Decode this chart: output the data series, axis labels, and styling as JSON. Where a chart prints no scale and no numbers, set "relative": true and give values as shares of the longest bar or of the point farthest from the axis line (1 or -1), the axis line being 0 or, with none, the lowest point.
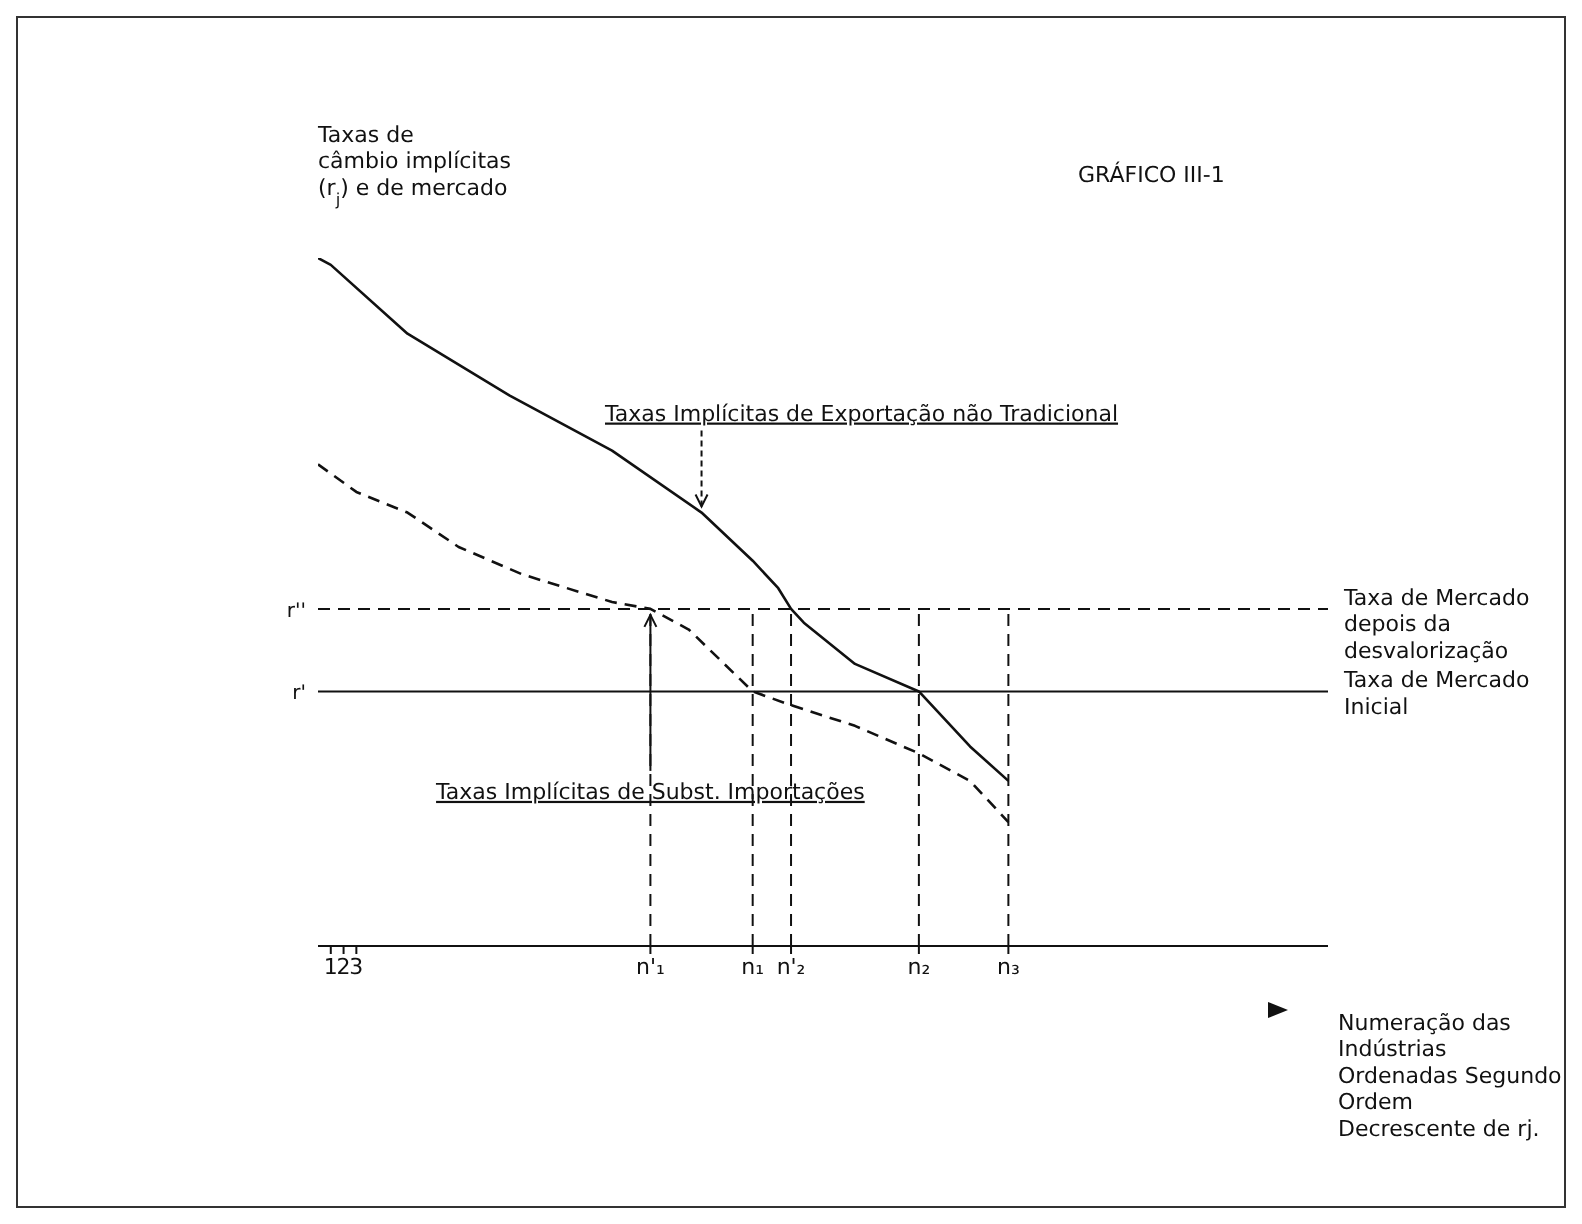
{
  "chart_data": {
    "type": "line",
    "title": "GRÁFICO III-1",
    "ylabel": "Taxas de\ncâmbio implícitas\n(r$_{j}$) e de mercado",
    "xlabel": "Numeração das\nIndústrias\nOrdenadas Segundo\nOrdem\nDecrescente de rj.",
    "relative": true,
    "marker": "none",
    "legend": false,
    "grid": false,
    "categories": [
      null,
      "1",
      "2",
      "3",
      null,
      null,
      null,
      null,
      null,
      null,
      null,
      null,
      null,
      null,
      null,
      null,
      null,
      null,
      null,
      null,
      null,
      null,
      null,
      null,
      null,
      null,
      "n'₁",
      null,
      null,
      null,
      null,
      null,
      null,
      null,
      "n₁",
      null,
      null,
      "n'₂",
      null,
      null,
      null,
      null,
      null,
      null,
      null,
      null,
      null,
      "n₂",
      null,
      null,
      null,
      null,
      null,
      null,
      "n₃",
      null,
      null,
      null,
      null,
      null,
      null,
      null,
      null,
      null,
      null,
      null,
      null,
      null,
      null,
      null,
      null,
      null,
      null,
      null,
      null,
      null,
      null,
      null,
      null,
      null
    ],
    "series": [
      {
        "name": "Taxas Implícitas de Exportação não Tradicional",
        "color": "#111111",
        "line_style": "solid",
        "values": [
          1.0,
          0.99,
          null,
          null,
          null,
          null,
          null,
          0.89,
          null,
          null,
          null,
          null,
          null,
          null,
          null,
          0.8,
          null,
          null,
          null,
          null,
          null,
          null,
          null,
          0.72,
          null,
          null,
          null,
          null,
          null,
          null,
          0.63,
          null,
          null,
          null,
          0.56,
          null,
          0.52,
          0.49,
          0.47,
          null,
          null,
          null,
          0.41,
          null,
          null,
          null,
          null,
          0.37,
          null,
          null,
          null,
          0.29,
          null,
          null,
          0.24,
          null,
          null,
          null,
          null,
          null,
          null,
          null,
          null,
          null,
          null,
          null,
          null,
          null,
          null,
          null,
          null,
          null,
          null,
          null,
          null,
          null,
          null,
          null,
          null,
          null
        ]
      },
      {
        "name": "Taxas Implícitas de Subst. Importações",
        "color": "#111111",
        "line_style": "dashed",
        "values": [
          0.7,
          null,
          null,
          0.66,
          null,
          null,
          null,
          0.63,
          null,
          null,
          null,
          0.58,
          null,
          null,
          null,
          null,
          0.54,
          null,
          null,
          null,
          null,
          null,
          null,
          0.5,
          null,
          null,
          0.49,
          null,
          null,
          0.46,
          null,
          null,
          null,
          null,
          0.37,
          null,
          null,
          0.35,
          null,
          null,
          null,
          null,
          0.32,
          null,
          null,
          null,
          null,
          0.28,
          null,
          null,
          null,
          0.24,
          null,
          null,
          0.18,
          null,
          null,
          null,
          null,
          null,
          null,
          null,
          null,
          null,
          null,
          null,
          null,
          null,
          null,
          null,
          null,
          null,
          null,
          null,
          null,
          null,
          null,
          null,
          null,
          null
        ]
      }
    ],
    "ref_lines": [
      {
        "axis": "y",
        "value": 0.49,
        "label": "Taxa de Mercado\ndepois da\ndesvalorização",
        "line_style": "dashed",
        "color": "#111111"
      },
      {
        "axis": "y",
        "value": 0.37,
        "label": "Taxa de Mercado\nInicial",
        "line_style": "solid",
        "color": "#111111"
      },
      {
        "axis": "x",
        "value": "n'₁",
        "line_style": "dashed",
        "color": "#111111"
      },
      {
        "axis": "x",
        "value": "n₁",
        "line_style": "dashed",
        "color": "#111111"
      },
      {
        "axis": "x",
        "value": "n'₂",
        "line_style": "dashed",
        "color": "#111111"
      },
      {
        "axis": "x",
        "value": "n₂",
        "line_style": "dashed",
        "color": "#111111"
      },
      {
        "axis": "x",
        "value": "n₃",
        "line_style": "dashed",
        "color": "#111111"
      }
    ],
    "annotations": [
      "r''",
      "r'"
    ]
  }
}
